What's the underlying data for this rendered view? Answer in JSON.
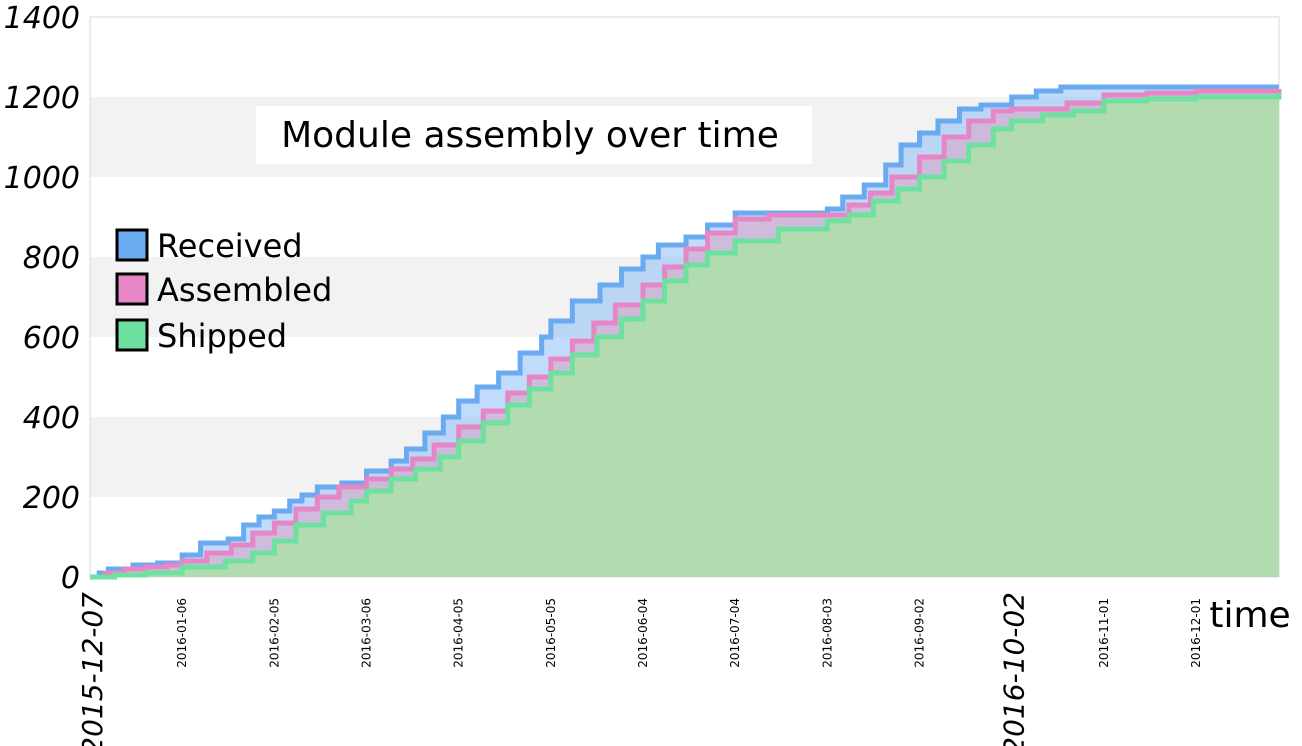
{
  "chart_data": {
    "type": "area",
    "title": "Module assembly over time",
    "xlabel": "time",
    "ylabel": "",
    "ylim": [
      0,
      1400
    ],
    "xlim": [
      "2015-12-07",
      "2016-12-28"
    ],
    "y_ticks": [
      "0",
      "200",
      "400",
      "600",
      "800",
      "1000",
      "1200",
      "1400"
    ],
    "x_ticks": [
      {
        "label": "2015-12-07",
        "emphasized": true
      },
      {
        "label": "2016-01-06",
        "emphasized": false
      },
      {
        "label": "2016-02-05",
        "emphasized": false
      },
      {
        "label": "2016-03-06",
        "emphasized": false
      },
      {
        "label": "2016-04-05",
        "emphasized": false
      },
      {
        "label": "2016-05-05",
        "emphasized": false
      },
      {
        "label": "2016-06-04",
        "emphasized": false
      },
      {
        "label": "2016-07-04",
        "emphasized": false
      },
      {
        "label": "2016-08-03",
        "emphasized": false
      },
      {
        "label": "2016-09-02",
        "emphasized": false
      },
      {
        "label": "2016-10-02",
        "emphasized": true
      },
      {
        "label": "2016-11-01",
        "emphasized": false
      },
      {
        "label": "2016-12-01",
        "emphasized": false
      }
    ],
    "grid": "alternating horizontal bands",
    "legend_position": "left",
    "series": [
      {
        "name": "Received",
        "color": "#6aaaf0",
        "fill": "#8ec0f5",
        "points": [
          [
            "2015-12-07",
            0
          ],
          [
            "2015-12-10",
            10
          ],
          [
            "2015-12-13",
            20
          ],
          [
            "2015-12-21",
            30
          ],
          [
            "2015-12-29",
            35
          ],
          [
            "2016-01-06",
            55
          ],
          [
            "2016-01-12",
            85
          ],
          [
            "2016-01-21",
            95
          ],
          [
            "2016-01-26",
            130
          ],
          [
            "2016-01-31",
            150
          ],
          [
            "2016-02-05",
            165
          ],
          [
            "2016-02-10",
            190
          ],
          [
            "2016-02-14",
            205
          ],
          [
            "2016-02-19",
            225
          ],
          [
            "2016-02-27",
            235
          ],
          [
            "2016-03-06",
            265
          ],
          [
            "2016-03-14",
            290
          ],
          [
            "2016-03-19",
            320
          ],
          [
            "2016-03-25",
            360
          ],
          [
            "2016-03-31",
            400
          ],
          [
            "2016-04-05",
            440
          ],
          [
            "2016-04-11",
            475
          ],
          [
            "2016-04-18",
            510
          ],
          [
            "2016-04-25",
            560
          ],
          [
            "2016-05-02",
            600
          ],
          [
            "2016-05-05",
            640
          ],
          [
            "2016-05-12",
            690
          ],
          [
            "2016-05-21",
            730
          ],
          [
            "2016-05-28",
            770
          ],
          [
            "2016-06-04",
            800
          ],
          [
            "2016-06-09",
            830
          ],
          [
            "2016-06-18",
            850
          ],
          [
            "2016-06-25",
            880
          ],
          [
            "2016-07-04",
            910
          ],
          [
            "2016-07-20",
            910
          ],
          [
            "2016-08-03",
            920
          ],
          [
            "2016-08-08",
            950
          ],
          [
            "2016-08-15",
            980
          ],
          [
            "2016-08-22",
            1030
          ],
          [
            "2016-08-27",
            1080
          ],
          [
            "2016-09-02",
            1110
          ],
          [
            "2016-09-08",
            1140
          ],
          [
            "2016-09-15",
            1170
          ],
          [
            "2016-09-22",
            1180
          ],
          [
            "2016-10-02",
            1200
          ],
          [
            "2016-10-10",
            1215
          ],
          [
            "2016-10-18",
            1225
          ],
          [
            "2016-11-01",
            1225
          ],
          [
            "2016-12-01",
            1225
          ],
          [
            "2016-12-28",
            1225
          ]
        ]
      },
      {
        "name": "Assembled",
        "color": "#e586c7",
        "fill": "#d8a5c8",
        "points": [
          [
            "2015-12-07",
            0
          ],
          [
            "2015-12-12",
            10
          ],
          [
            "2015-12-18",
            20
          ],
          [
            "2015-12-25",
            25
          ],
          [
            "2016-01-01",
            30
          ],
          [
            "2016-01-06",
            40
          ],
          [
            "2016-01-14",
            60
          ],
          [
            "2016-01-22",
            80
          ],
          [
            "2016-01-29",
            110
          ],
          [
            "2016-02-05",
            135
          ],
          [
            "2016-02-12",
            170
          ],
          [
            "2016-02-19",
            200
          ],
          [
            "2016-02-26",
            225
          ],
          [
            "2016-03-06",
            245
          ],
          [
            "2016-03-14",
            270
          ],
          [
            "2016-03-21",
            295
          ],
          [
            "2016-03-28",
            330
          ],
          [
            "2016-04-05",
            375
          ],
          [
            "2016-04-13",
            415
          ],
          [
            "2016-04-21",
            460
          ],
          [
            "2016-04-28",
            500
          ],
          [
            "2016-05-05",
            545
          ],
          [
            "2016-05-12",
            590
          ],
          [
            "2016-05-19",
            635
          ],
          [
            "2016-05-26",
            680
          ],
          [
            "2016-06-04",
            730
          ],
          [
            "2016-06-11",
            775
          ],
          [
            "2016-06-18",
            820
          ],
          [
            "2016-06-25",
            860
          ],
          [
            "2016-07-04",
            895
          ],
          [
            "2016-07-15",
            905
          ],
          [
            "2016-08-03",
            905
          ],
          [
            "2016-08-10",
            930
          ],
          [
            "2016-08-17",
            960
          ],
          [
            "2016-08-24",
            1000
          ],
          [
            "2016-09-02",
            1050
          ],
          [
            "2016-09-10",
            1100
          ],
          [
            "2016-09-18",
            1140
          ],
          [
            "2016-09-26",
            1165
          ],
          [
            "2016-10-02",
            1170
          ],
          [
            "2016-10-20",
            1185
          ],
          [
            "2016-11-01",
            1205
          ],
          [
            "2016-11-15",
            1210
          ],
          [
            "2016-12-01",
            1215
          ],
          [
            "2016-12-28",
            1220
          ]
        ]
      },
      {
        "name": "Shipped",
        "color": "#6ee0a0",
        "fill": "#b2dcb0",
        "points": [
          [
            "2015-12-07",
            0
          ],
          [
            "2015-12-15",
            5
          ],
          [
            "2015-12-25",
            10
          ],
          [
            "2016-01-06",
            25
          ],
          [
            "2016-01-20",
            40
          ],
          [
            "2016-01-29",
            60
          ],
          [
            "2016-02-05",
            90
          ],
          [
            "2016-02-12",
            130
          ],
          [
            "2016-02-21",
            160
          ],
          [
            "2016-03-01",
            190
          ],
          [
            "2016-03-06",
            215
          ],
          [
            "2016-03-14",
            245
          ],
          [
            "2016-03-22",
            270
          ],
          [
            "2016-03-30",
            300
          ],
          [
            "2016-04-05",
            340
          ],
          [
            "2016-04-13",
            385
          ],
          [
            "2016-04-21",
            430
          ],
          [
            "2016-04-28",
            470
          ],
          [
            "2016-05-05",
            510
          ],
          [
            "2016-05-12",
            555
          ],
          [
            "2016-05-20",
            600
          ],
          [
            "2016-05-28",
            645
          ],
          [
            "2016-06-04",
            690
          ],
          [
            "2016-06-11",
            740
          ],
          [
            "2016-06-18",
            780
          ],
          [
            "2016-06-25",
            810
          ],
          [
            "2016-07-04",
            840
          ],
          [
            "2016-07-18",
            870
          ],
          [
            "2016-08-03",
            890
          ],
          [
            "2016-08-10",
            905
          ],
          [
            "2016-08-18",
            940
          ],
          [
            "2016-08-26",
            970
          ],
          [
            "2016-09-02",
            1000
          ],
          [
            "2016-09-10",
            1040
          ],
          [
            "2016-09-18",
            1080
          ],
          [
            "2016-09-26",
            1120
          ],
          [
            "2016-10-02",
            1140
          ],
          [
            "2016-10-12",
            1155
          ],
          [
            "2016-10-22",
            1165
          ],
          [
            "2016-11-01",
            1190
          ],
          [
            "2016-11-15",
            1195
          ],
          [
            "2016-12-01",
            1200
          ],
          [
            "2016-12-28",
            1210
          ]
        ]
      }
    ]
  }
}
